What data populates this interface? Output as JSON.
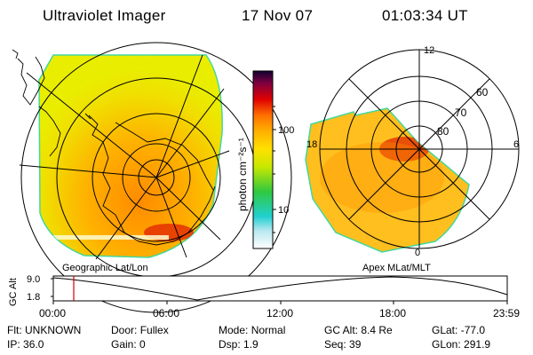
{
  "header": {
    "title": "Ultraviolet Imager",
    "date": "17 Nov 07",
    "time": "01:03:34 UT"
  },
  "colors": {
    "background": "#ffffff",
    "aurora_low": "#e8f000",
    "aurora_mid": "#ffa000",
    "aurora_high": "#e00000",
    "time_marker": "#d00000",
    "colorbar_stops": [
      "#ffffff",
      "#b8e8f0",
      "#20d0d0",
      "#30c840",
      "#c8e800",
      "#ffe000",
      "#ffb000",
      "#ff7000",
      "#e00000",
      "#800040",
      "#100030"
    ]
  },
  "left_panel": {
    "caption": "Geographic Lat/Lon"
  },
  "right_panel": {
    "caption": "Apex MLat/MLT",
    "mlt_labels": [
      "12",
      "18",
      "6",
      "0"
    ],
    "lat_labels": [
      "60",
      "70",
      "80"
    ]
  },
  "colorbar": {
    "unit_label": "photon cm⁻²s⁻¹",
    "scale": "log",
    "ticks": [
      "100",
      "10"
    ]
  },
  "altitude_plot": {
    "ylabel": "GC Alt",
    "yticks": [
      "9.0",
      "1.8"
    ],
    "xticks": [
      "00:00",
      "06:00",
      "12:00",
      "18:00",
      "23:59"
    ],
    "current_time_marker": "01:03:34"
  },
  "info_rows": [
    [
      {
        "key": "Flt:",
        "value": "UNKNOWN"
      },
      {
        "key": "Door:",
        "value": "Fullex"
      },
      {
        "key": "Mode:",
        "value": "Normal"
      },
      {
        "key": "GC Alt:",
        "value": "8.4 Re"
      },
      {
        "key": "GLat:",
        "value": "-77.0"
      }
    ],
    [
      {
        "key": "IP:",
        "value": "36.0"
      },
      {
        "key": "Gain:",
        "value": "0"
      },
      {
        "key": "Dsp:",
        "value": "1.9"
      },
      {
        "key": "Seq:",
        "value": "39"
      },
      {
        "key": "GLon:",
        "value": "291.9"
      }
    ]
  ]
}
